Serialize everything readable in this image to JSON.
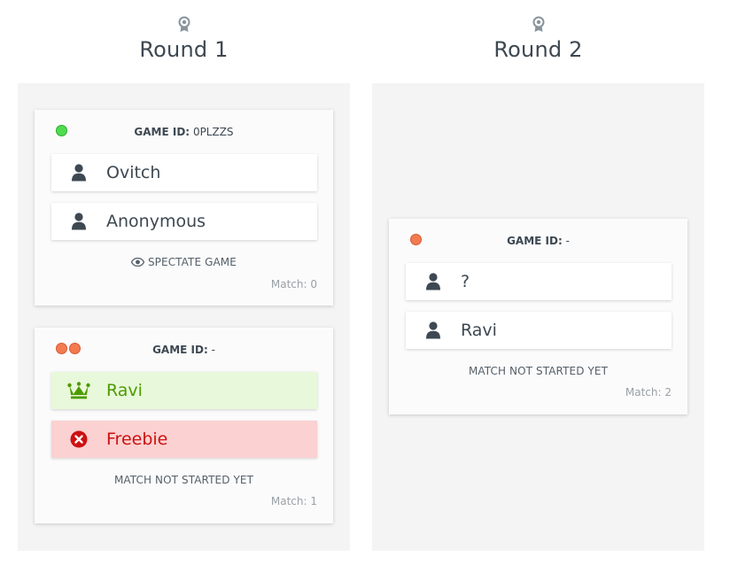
{
  "rounds": [
    {
      "title": "Round 1",
      "matches": [
        {
          "status": [
            "green"
          ],
          "game_id_label": "GAME ID:",
          "game_id_value": "0PLZZS",
          "players": [
            {
              "name": "Ovitch",
              "state": "normal",
              "icon": "user-icon"
            },
            {
              "name": "Anonymous",
              "state": "normal",
              "icon": "user-icon"
            }
          ],
          "action": "SPECTATE GAME",
          "action_icon": "eye-icon",
          "match_label": "Match: 0"
        },
        {
          "status": [
            "red",
            "red"
          ],
          "game_id_label": "GAME ID:",
          "game_id_value": "-",
          "players": [
            {
              "name": "Ravi",
              "state": "winner",
              "icon": "crown-icon"
            },
            {
              "name": "Freebie",
              "state": "loser",
              "icon": "x-circle-icon"
            }
          ],
          "action": "MATCH NOT STARTED YET",
          "match_label": "Match: 1"
        }
      ]
    },
    {
      "title": "Round 2",
      "matches": [
        {
          "status": [
            "red"
          ],
          "game_id_label": "GAME ID:",
          "game_id_value": "-",
          "players": [
            {
              "name": "?",
              "state": "normal",
              "icon": "user-icon"
            },
            {
              "name": "Ravi",
              "state": "normal",
              "icon": "user-icon"
            }
          ],
          "action": "MATCH NOT STARTED YET",
          "match_label": "Match: 2"
        }
      ]
    }
  ],
  "colors": {
    "status_green": "#4fdc4f",
    "status_red": "#f47a50",
    "winner_bg": "#e8f8da",
    "winner_text": "#4d9a00",
    "loser_bg": "#fbd1d1",
    "loser_text": "#cc1111"
  }
}
